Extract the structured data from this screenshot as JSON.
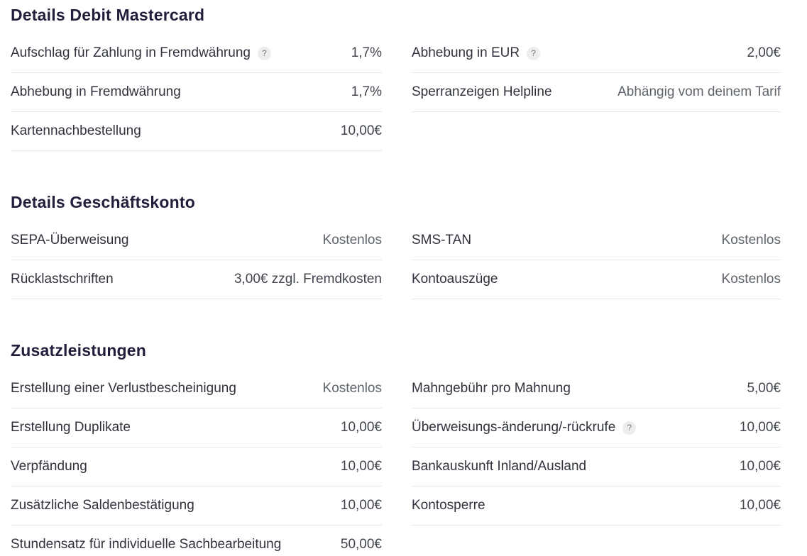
{
  "theme": {
    "title_color": "#211e3b",
    "label_color": "#30333d",
    "value_color": "#41454e",
    "muted_value_color": "#5e646b",
    "divider_color": "#e8e8e8",
    "help_chip_bg": "#ededed",
    "help_chip_fg": "#75797f",
    "page_bg": "#ffffff",
    "help_glyph": "?"
  },
  "sections": [
    {
      "title": "Details Debit Mastercard",
      "columns": [
        {
          "rows": [
            {
              "label": "Aufschlag für Zahlung in Fremdwährung",
              "help": true,
              "value": "1,7%",
              "muted": false
            },
            {
              "label": "Abhebung in Fremdwährung",
              "help": false,
              "value": "1,7%",
              "muted": false
            },
            {
              "label": "Kartennachbestellung",
              "help": false,
              "value": "10,00€",
              "muted": false
            }
          ]
        },
        {
          "rows": [
            {
              "label": "Abhebung in EUR",
              "help": true,
              "value": "2,00€",
              "muted": false
            },
            {
              "label": "Sperranzeigen Helpline",
              "help": false,
              "value": "Abhängig vom deinem Tarif",
              "muted": true
            }
          ]
        }
      ]
    },
    {
      "title": "Details Geschäftskonto",
      "columns": [
        {
          "rows": [
            {
              "label": "SEPA-Überweisung",
              "help": false,
              "value": "Kostenlos",
              "muted": true
            },
            {
              "label": "Rücklastschriften",
              "help": false,
              "value": "3,00€ zzgl. Fremdkosten",
              "muted": false
            }
          ]
        },
        {
          "rows": [
            {
              "label": "SMS-TAN",
              "help": false,
              "value": "Kostenlos",
              "muted": true
            },
            {
              "label": "Kontoauszüge",
              "help": false,
              "value": "Kostenlos",
              "muted": true
            }
          ]
        }
      ]
    },
    {
      "title": "Zusatzleistungen",
      "columns": [
        {
          "rows": [
            {
              "label": "Erstellung einer Verlustbescheinigung",
              "help": false,
              "value": "Kostenlos",
              "muted": true
            },
            {
              "label": "Erstellung Duplikate",
              "help": false,
              "value": "10,00€",
              "muted": false
            },
            {
              "label": "Verpfändung",
              "help": false,
              "value": "10,00€",
              "muted": false
            },
            {
              "label": "Zusätzliche Saldenbestätigung",
              "help": false,
              "value": "10,00€",
              "muted": false
            },
            {
              "label": "Stundensatz für individuelle Sachbearbeitung",
              "help": false,
              "value": "50,00€",
              "muted": false
            }
          ]
        },
        {
          "rows": [
            {
              "label": "Mahngebühr pro Mahnung",
              "help": false,
              "value": "5,00€",
              "muted": false
            },
            {
              "label": "Überweisungs-änderung/-rückrufe",
              "help": true,
              "value": "10,00€",
              "muted": false
            },
            {
              "label": "Bankauskunft Inland/Ausland",
              "help": false,
              "value": "10,00€",
              "muted": false
            },
            {
              "label": "Kontosperre",
              "help": false,
              "value": "10,00€",
              "muted": false
            }
          ]
        }
      ]
    }
  ]
}
